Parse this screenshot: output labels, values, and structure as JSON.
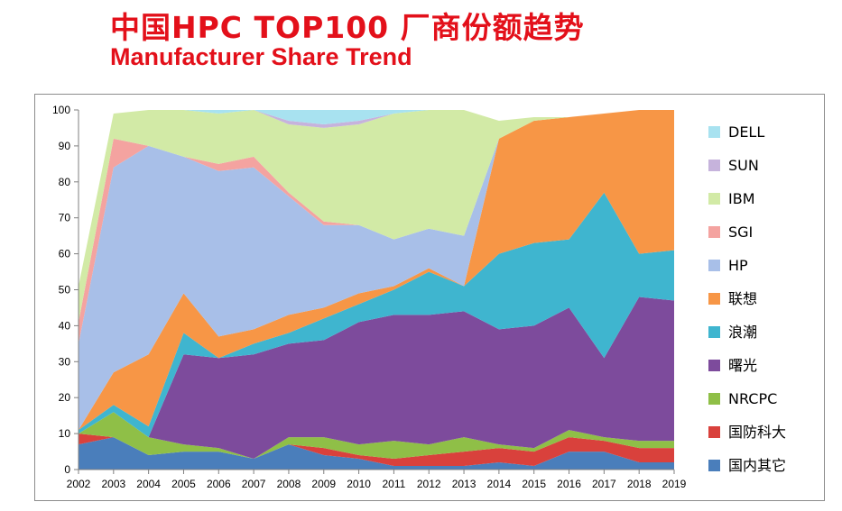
{
  "title_cn": "中国HPC TOP100 厂商份额趋势",
  "title_en": "Manufacturer Share Trend",
  "chart_data": {
    "type": "area",
    "stacked": true,
    "x": [
      2002,
      2003,
      2004,
      2005,
      2006,
      2007,
      2008,
      2009,
      2010,
      2011,
      2012,
      2013,
      2014,
      2015,
      2016,
      2017,
      2018,
      2019
    ],
    "ylim": [
      0,
      100
    ],
    "yticks": [
      0,
      10,
      20,
      30,
      40,
      50,
      60,
      70,
      80,
      90,
      100
    ],
    "legend_position": "right",
    "series": [
      {
        "name": "国内其它",
        "color": "#4a7ebb",
        "values": [
          7,
          9,
          4,
          5,
          5,
          3,
          7,
          4,
          3,
          1,
          1,
          1,
          2,
          1,
          5,
          5,
          2,
          2
        ]
      },
      {
        "name": "国防科大",
        "color": "#d9413c",
        "values": [
          3,
          0,
          0,
          0,
          0,
          0,
          0,
          2,
          1,
          2,
          3,
          4,
          4,
          4,
          4,
          3,
          4,
          4
        ]
      },
      {
        "name": "NRCPC",
        "color": "#8fbf47",
        "values": [
          0,
          7,
          5,
          2,
          1,
          0,
          2,
          3,
          3,
          5,
          3,
          4,
          1,
          1,
          2,
          1,
          2,
          2
        ]
      },
      {
        "name": "曙光",
        "color": "#7d4b9c",
        "values": [
          0,
          0,
          0,
          25,
          25,
          29,
          26,
          27,
          34,
          35,
          36,
          35,
          32,
          34,
          34,
          22,
          40,
          39
        ]
      },
      {
        "name": "浪潮",
        "color": "#3fb5cf",
        "values": [
          1,
          2,
          3,
          6,
          0,
          3,
          3,
          6,
          5,
          7,
          12,
          7,
          21,
          23,
          19,
          46,
          12,
          14
        ]
      },
      {
        "name": "联想",
        "color": "#f79646",
        "values": [
          0,
          9,
          20,
          11,
          6,
          4,
          5,
          3,
          3,
          1,
          1,
          0,
          32,
          34,
          34,
          22,
          40,
          39
        ]
      },
      {
        "name": "HP",
        "color": "#a8bfe8",
        "values": [
          24,
          57,
          58,
          38,
          46,
          45,
          33,
          23,
          19,
          13,
          11,
          14,
          0,
          0,
          0,
          0,
          0,
          0
        ]
      },
      {
        "name": "SGI",
        "color": "#f4a3a0",
        "values": [
          6,
          8,
          0,
          0,
          2,
          3,
          1,
          1,
          0,
          0,
          0,
          0,
          0,
          0,
          0,
          0,
          0,
          0
        ]
      },
      {
        "name": "IBM",
        "color": "#d2eaa6",
        "values": [
          10,
          7,
          10,
          13,
          14,
          13,
          19,
          26,
          28,
          35,
          33,
          35,
          5,
          1,
          0,
          0,
          0,
          0
        ]
      },
      {
        "name": "SUN",
        "color": "#c6b3dc",
        "values": [
          0,
          0,
          0,
          0,
          0,
          0,
          1,
          1,
          1,
          0,
          0,
          0,
          0,
          0,
          0,
          0,
          0,
          0
        ]
      },
      {
        "name": "DELL",
        "color": "#a8e2f0",
        "values": [
          0,
          0,
          0,
          0,
          1,
          0,
          3,
          4,
          3,
          1,
          0,
          0,
          0,
          0,
          0,
          0,
          0,
          0
        ]
      }
    ]
  }
}
